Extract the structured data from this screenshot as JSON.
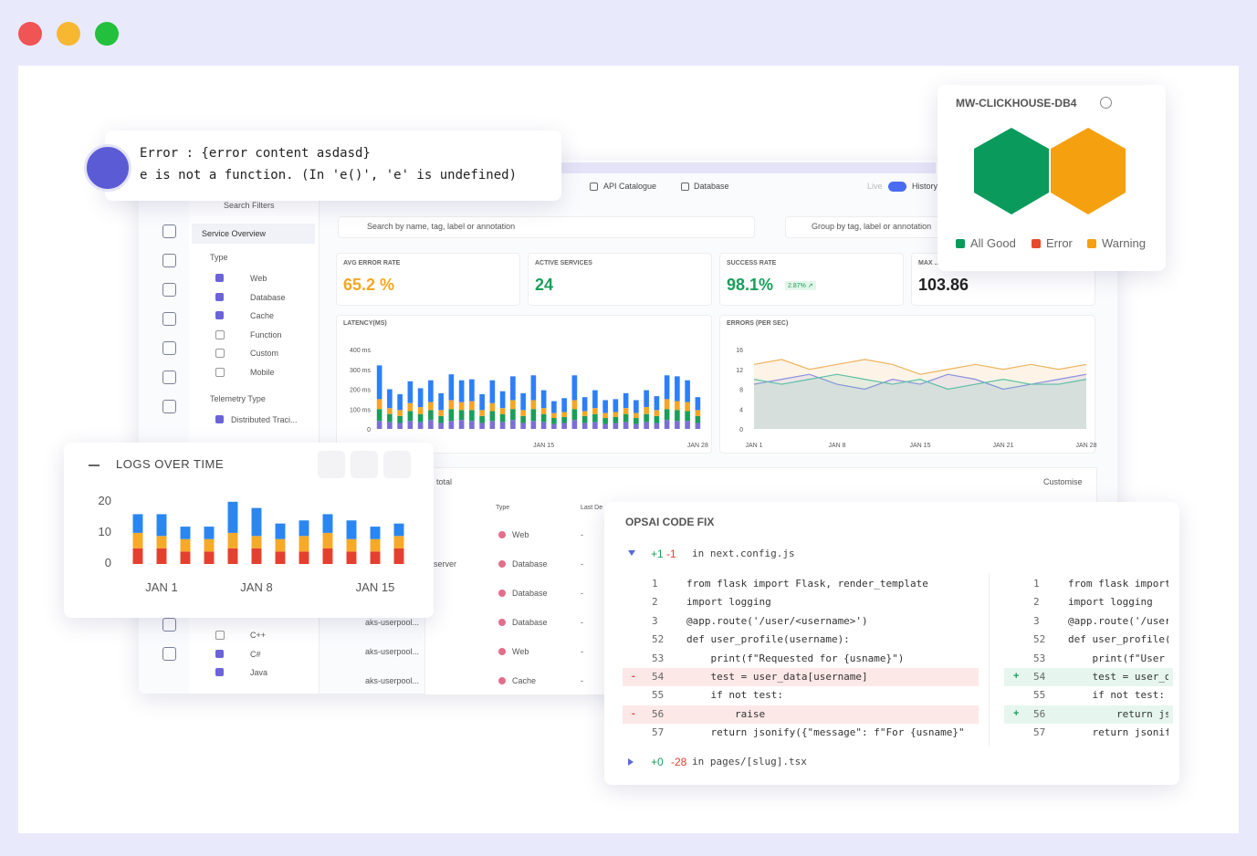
{
  "error_popup": {
    "line1": "Error : {error content asdasd}",
    "line2": "e is not a function. (In 'e()', 'e' is undefined)"
  },
  "nav": {
    "tabs": [
      "API Catalogue",
      "Database"
    ],
    "live": "Live",
    "history": "History"
  },
  "sidebar": {
    "search": "Search Filters",
    "section": "Service Overview",
    "type_label": "Type",
    "types": [
      {
        "label": "Web",
        "checked": true
      },
      {
        "label": "Database",
        "checked": true
      },
      {
        "label": "Cache",
        "checked": true
      },
      {
        "label": "Function",
        "checked": false
      },
      {
        "label": "Custom",
        "checked": false
      },
      {
        "label": "Mobile",
        "checked": false
      }
    ],
    "telemetry_label": "Telemetry Type",
    "telemetry": [
      {
        "label": "Distributed Traci...",
        "checked": true
      }
    ],
    "languages": [
      {
        "label": "C++",
        "checked": false
      },
      {
        "label": "C#",
        "checked": true
      },
      {
        "label": "Java",
        "checked": true
      }
    ]
  },
  "search": {
    "placeholder": "Search by name, tag, label or annotation",
    "group": "Group by tag, label or annotation"
  },
  "kpis": [
    {
      "label": "AVG ERROR RATE",
      "value": "65.2 %",
      "color": "#f5a623"
    },
    {
      "label": "ACTIVE SERVICES",
      "value": "24",
      "color": "#1a9e5a"
    },
    {
      "label": "SUCCESS RATE",
      "value": "98.1%",
      "color": "#1a9e5a",
      "badge": "2.87% ↗"
    },
    {
      "label": "MAX ...",
      "value": "103.86",
      "color": "#222"
    }
  ],
  "table": {
    "total": "total",
    "customise": "Customise",
    "headers": [
      "Type",
      "Last De"
    ],
    "rows": [
      {
        "type": "Web",
        "last": "-"
      },
      {
        "name": "server",
        "type": "Database",
        "last": "-"
      },
      {
        "type": "Database",
        "last": "-"
      },
      {
        "name": "aks-userpool...",
        "type": "Database",
        "last": "-"
      },
      {
        "name": "aks-userpool...",
        "type": "Web",
        "last": "-"
      },
      {
        "name": "aks-userpool...",
        "type": "Cache",
        "last": "-"
      }
    ]
  },
  "host_panel": {
    "title": "MW-CLICKHOUSE-DB4",
    "hexagons": [
      "#0a9a5c",
      "#f5a00f"
    ],
    "legend": [
      {
        "label": "All Good",
        "color": "#0a9a5c"
      },
      {
        "label": "Error",
        "color": "#e6492d"
      },
      {
        "label": "Warning",
        "color": "#f5a00f"
      }
    ]
  },
  "code_fix": {
    "title": "OPSAI CODE FIX",
    "files": [
      {
        "added": "+1",
        "removed": "-1",
        "name": "in next.config.js"
      },
      {
        "added": "+0",
        "removed": "-28",
        "name": "in pages/[slug].tsx"
      }
    ],
    "left": [
      {
        "no": "1",
        "code": "from flask import Flask, render_template"
      },
      {
        "no": "2",
        "code": "import logging"
      },
      {
        "no": "3",
        "code": "@app.route('/user/<username>')"
      },
      {
        "no": "52",
        "code": "def user_profile(username):"
      },
      {
        "no": "53",
        "code": "    print(f\"Requested for {usname}\")"
      },
      {
        "no": "54",
        "mark": "-",
        "code": "    test = user_data[username]"
      },
      {
        "no": "55",
        "code": "    if not test:"
      },
      {
        "no": "56",
        "mark": "-",
        "code": "        raise"
      },
      {
        "no": "57",
        "code": "    return jsonify({\"message\": f\"For {usname}\""
      }
    ],
    "right": [
      {
        "no": "1",
        "code": "from flask import"
      },
      {
        "no": "2",
        "code": "import logging"
      },
      {
        "no": "3",
        "code": "@app.route('/user/"
      },
      {
        "no": "52",
        "code": "def user_profile(u"
      },
      {
        "no": "53",
        "code": "    print(f\"User pr"
      },
      {
        "no": "54",
        "mark": "+",
        "code": "    test = user_dat"
      },
      {
        "no": "55",
        "code": "    if not test:"
      },
      {
        "no": "56",
        "mark": "+",
        "code": "        return json"
      },
      {
        "no": "57",
        "code": "    return jsonify("
      }
    ]
  },
  "chart_data": [
    {
      "type": "bar",
      "stacked": true,
      "title": "LATENCY(MS)",
      "ylim": [
        0,
        400
      ],
      "yticks": [
        0,
        {
          "value": 100,
          "label": "100 ms"
        },
        {
          "value": 200,
          "label": "200 ms"
        },
        {
          "value": 300,
          "label": "300 ms"
        },
        {
          "value": 400,
          "label": "400 ms"
        }
      ],
      "categories": [
        null,
        null,
        null,
        null,
        null,
        null,
        null,
        null,
        null,
        null,
        null,
        null,
        null,
        null,
        null,
        null,
        "JAN 15",
        null,
        null,
        null,
        null,
        null,
        null,
        null,
        null,
        null,
        null,
        null,
        null,
        null,
        null,
        "JAN 28"
      ],
      "series": [
        {
          "color": "#7b6fd6",
          "values": [
            40,
            35,
            30,
            40,
            35,
            45,
            30,
            40,
            45,
            40,
            30,
            40,
            35,
            45,
            30,
            40,
            35,
            25,
            30,
            45,
            30,
            35,
            25,
            30,
            35,
            25,
            35,
            30,
            45,
            40,
            40,
            30
          ]
        },
        {
          "color": "#1a9e5a",
          "values": [
            60,
            40,
            35,
            50,
            40,
            50,
            35,
            60,
            50,
            55,
            35,
            50,
            40,
            55,
            35,
            60,
            40,
            30,
            30,
            55,
            35,
            40,
            30,
            30,
            40,
            30,
            40,
            35,
            55,
            55,
            50,
            35
          ]
        },
        {
          "color": "#f5a623",
          "values": [
            50,
            30,
            30,
            40,
            35,
            40,
            30,
            45,
            40,
            45,
            30,
            40,
            30,
            45,
            30,
            45,
            30,
            25,
            25,
            45,
            25,
            30,
            25,
            25,
            30,
            25,
            35,
            30,
            50,
            45,
            45,
            30
          ]
        },
        {
          "color": "#2d7ff9",
          "values": [
            170,
            95,
            80,
            110,
            95,
            110,
            85,
            130,
            110,
            110,
            80,
            115,
            85,
            120,
            85,
            125,
            90,
            60,
            70,
            125,
            70,
            90,
            65,
            65,
            75,
            65,
            85,
            70,
            120,
            125,
            110,
            65
          ]
        }
      ]
    },
    {
      "type": "area",
      "title": "ERRORS (PER SEC)",
      "ylim": [
        0,
        16
      ],
      "yticks": [
        0,
        4,
        8,
        12,
        16
      ],
      "categories": [
        "JAN 1",
        null,
        null,
        "JAN 8",
        null,
        null,
        "JAN 15",
        null,
        null,
        "JAN 21",
        null,
        null,
        "JAN 28"
      ],
      "series": [
        {
          "color": "#f0b25c",
          "values": [
            13,
            14,
            12,
            13,
            14,
            13,
            11,
            12,
            13,
            12,
            13,
            12,
            13
          ]
        },
        {
          "color": "#8a8fe0",
          "values": [
            9,
            10,
            11,
            9,
            8,
            10,
            9,
            11,
            10,
            8,
            9,
            10,
            11
          ]
        },
        {
          "color": "#5cc0a8",
          "values": [
            10,
            9,
            10,
            11,
            10,
            9,
            10,
            8,
            9,
            10,
            9,
            9,
            10
          ]
        }
      ]
    },
    {
      "type": "bar",
      "stacked": true,
      "title": "LOGS OVER TIME",
      "ylim": [
        0,
        22
      ],
      "yticks": [
        0,
        10,
        20
      ],
      "categories": [
        null,
        "JAN 1",
        null,
        null,
        null,
        "JAN 8",
        null,
        null,
        null,
        null,
        "JAN 15",
        null
      ],
      "series": [
        {
          "color": "#e5402f",
          "values": [
            5,
            5,
            4,
            4,
            5,
            5,
            4,
            4,
            5,
            4,
            4,
            5
          ]
        },
        {
          "color": "#f7a928",
          "values": [
            5,
            4,
            4,
            4,
            5,
            4,
            4,
            5,
            5,
            4,
            4,
            4
          ]
        },
        {
          "color": "#2a86f0",
          "values": [
            6,
            7,
            4,
            4,
            10,
            9,
            5,
            5,
            6,
            6,
            4,
            4
          ]
        }
      ]
    }
  ]
}
